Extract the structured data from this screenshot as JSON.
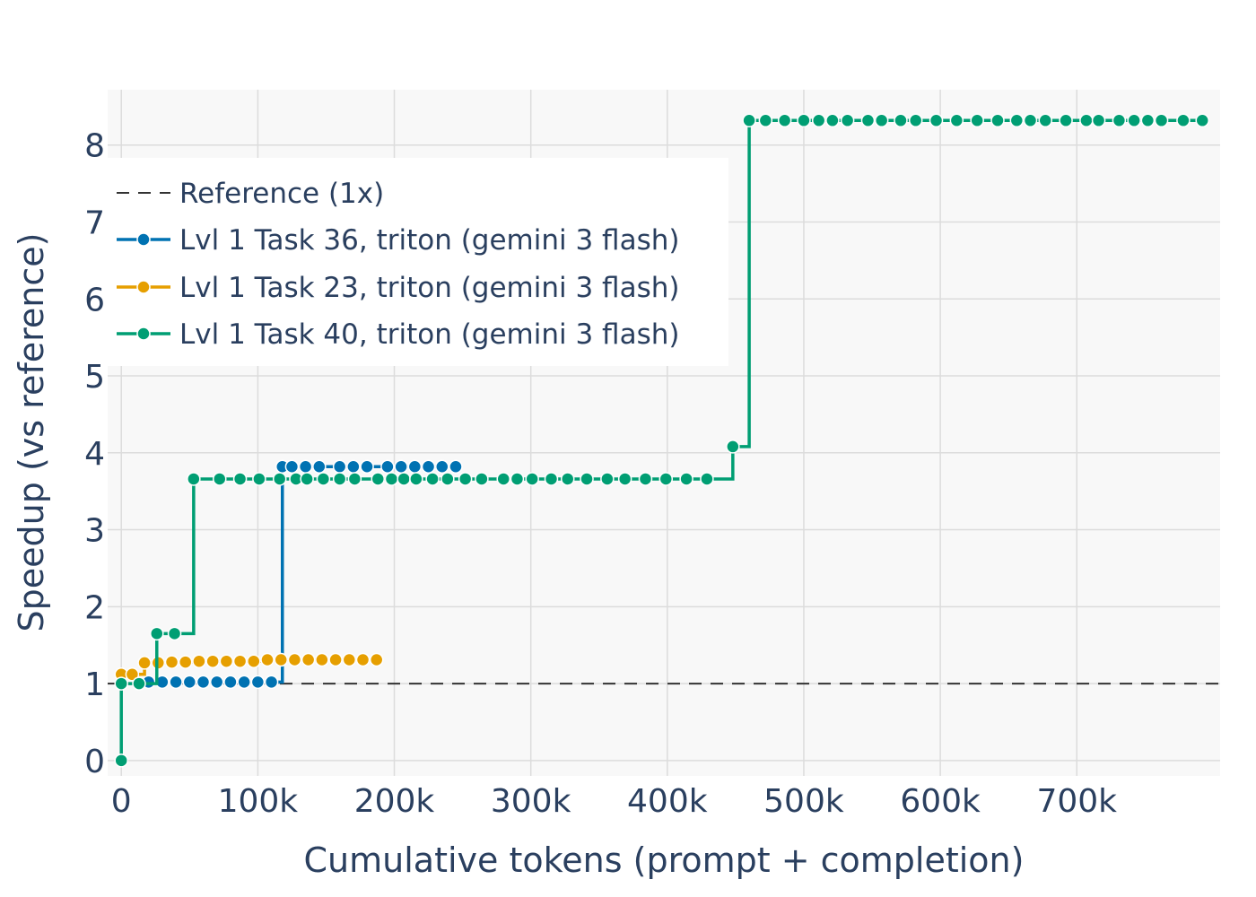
{
  "chart_data": {
    "type": "line",
    "line_shape": "step",
    "xlabel": "Cumulative tokens (prompt + completion)",
    "ylabel": "Speedup (vs reference)",
    "xlim": [
      -10000,
      805000
    ],
    "ylim": [
      -0.2,
      8.72
    ],
    "x_ticks": [
      0,
      100000,
      200000,
      300000,
      400000,
      500000,
      600000,
      700000
    ],
    "x_tick_labels": [
      "0",
      "100k",
      "200k",
      "300k",
      "400k",
      "500k",
      "600k",
      "700k"
    ],
    "y_ticks": [
      0,
      1,
      2,
      3,
      4,
      5,
      6,
      7,
      8
    ],
    "y_tick_labels": [
      "0",
      "1",
      "2",
      "3",
      "4",
      "5",
      "6",
      "7",
      "8"
    ],
    "grid": true,
    "legend_position": "top-left",
    "reference": {
      "name": "Reference (1x)",
      "y": 1,
      "color": "#333333",
      "style": "dashed"
    },
    "series": [
      {
        "name": "Lvl 1 Task 36, triton (gemini 3 flash)",
        "color": "#0072B2",
        "x": [
          20000,
          30000,
          40000,
          50000,
          60000,
          70000,
          80000,
          90000,
          100000,
          110000,
          118000,
          125000,
          135000,
          145000,
          160000,
          170000,
          180000,
          195000,
          205000,
          215000,
          225000,
          235000,
          245000
        ],
        "y": [
          1.02,
          1.02,
          1.02,
          1.02,
          1.02,
          1.02,
          1.02,
          1.02,
          1.02,
          1.02,
          3.82,
          3.82,
          3.82,
          3.82,
          3.82,
          3.82,
          3.82,
          3.82,
          3.82,
          3.82,
          3.82,
          3.82,
          3.82
        ]
      },
      {
        "name": "Lvl 1 Task 23, triton (gemini 3 flash)",
        "color": "#E69F00",
        "x": [
          0,
          8000,
          17000,
          27000,
          37000,
          47000,
          57000,
          67000,
          77000,
          87000,
          97000,
          107000,
          117000,
          127000,
          137000,
          147000,
          157000,
          167000,
          177000,
          187000
        ],
        "y": [
          1.12,
          1.12,
          1.27,
          1.27,
          1.28,
          1.28,
          1.29,
          1.29,
          1.29,
          1.29,
          1.29,
          1.31,
          1.31,
          1.31,
          1.31,
          1.31,
          1.31,
          1.31,
          1.31,
          1.31
        ]
      },
      {
        "name": "Lvl 1 Task 40, triton (gemini 3 flash)",
        "color": "#009E73",
        "x": [
          0,
          0,
          13000,
          26000,
          39000,
          53000,
          72000,
          87000,
          101000,
          116000,
          128000,
          136000,
          148000,
          160000,
          171000,
          188000,
          198000,
          207000,
          216000,
          228000,
          239000,
          252000,
          264000,
          280000,
          290000,
          301000,
          315000,
          327000,
          341000,
          356000,
          369000,
          384000,
          399000,
          414000,
          429000,
          448000,
          460000,
          472000,
          486000,
          500000,
          511000,
          521000,
          532000,
          547000,
          557000,
          571000,
          582000,
          597000,
          612000,
          627000,
          642000,
          656000,
          666000,
          677000,
          692000,
          707000,
          716000,
          731000,
          742000,
          752000,
          762000,
          778000,
          792000
        ],
        "y": [
          0,
          1.0,
          1.0,
          1.65,
          1.65,
          3.66,
          3.66,
          3.66,
          3.66,
          3.66,
          3.66,
          3.66,
          3.66,
          3.66,
          3.66,
          3.66,
          3.66,
          3.66,
          3.66,
          3.66,
          3.66,
          3.66,
          3.66,
          3.66,
          3.66,
          3.66,
          3.66,
          3.66,
          3.66,
          3.66,
          3.66,
          3.66,
          3.66,
          3.66,
          3.66,
          4.08,
          8.32,
          8.32,
          8.32,
          8.32,
          8.32,
          8.32,
          8.32,
          8.32,
          8.32,
          8.32,
          8.32,
          8.32,
          8.32,
          8.32,
          8.32,
          8.32,
          8.32,
          8.32,
          8.32,
          8.32,
          8.32,
          8.32,
          8.32,
          8.32,
          8.32,
          8.32,
          8.32
        ]
      }
    ]
  }
}
